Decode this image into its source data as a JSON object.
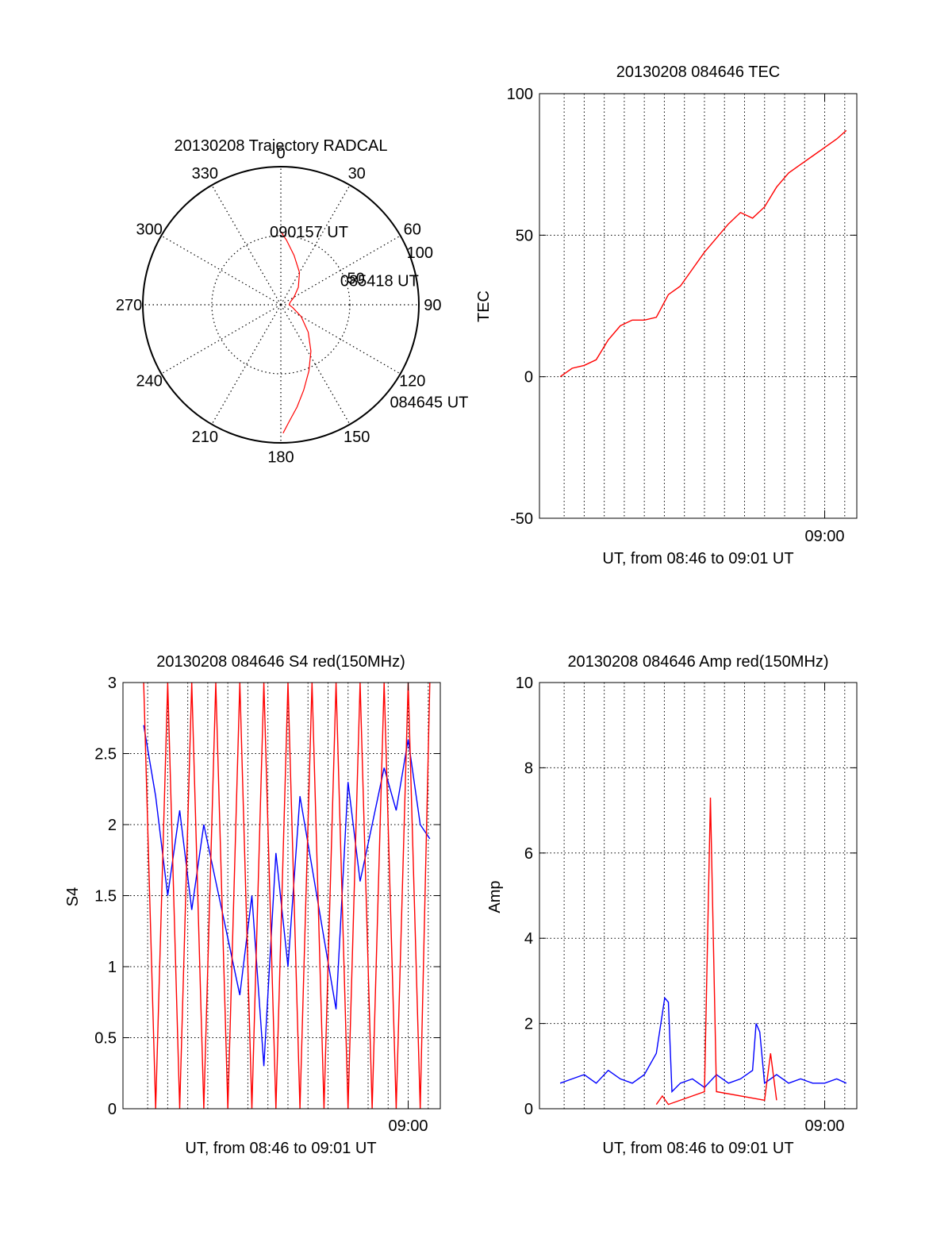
{
  "colors": {
    "red": "#ff0000",
    "blue": "#0000ff",
    "grid": "#000000",
    "axis": "#000000"
  },
  "chart_data": [
    {
      "id": "trajectory",
      "type": "polar",
      "title": "20130208 Trajectory RADCAL",
      "angle_labels": [
        "0",
        "30",
        "60",
        "90",
        "120",
        "150",
        "180",
        "210",
        "240",
        "270",
        "300",
        "330"
      ],
      "ring_labels": [
        "50",
        "100"
      ],
      "r_max": 100,
      "series": [
        {
          "color": "#ff0000",
          "points": [
            [
              179,
              93
            ],
            [
              176,
              85
            ],
            [
              171,
              75
            ],
            [
              165,
              64
            ],
            [
              157,
              52
            ],
            [
              147,
              40
            ],
            [
              135,
              28
            ],
            [
              120,
              17
            ],
            [
              104,
              9
            ],
            [
              90,
              6
            ],
            [
              75,
              7
            ],
            [
              60,
              11
            ],
            [
              45,
              18
            ],
            [
              30,
              27
            ],
            [
              15,
              37
            ],
            [
              5,
              47
            ],
            [
              0,
              53
            ]
          ]
        }
      ],
      "annotations": [
        {
          "text": "090157 UT",
          "az": 0,
          "r": 53
        },
        {
          "text": "085418 UT",
          "az": 71,
          "r": 54
        },
        {
          "text": "084645 UT",
          "az": 129,
          "r": 112
        }
      ]
    },
    {
      "id": "tec",
      "type": "line",
      "title": "20130208 084646 TEC",
      "xlabel": "UT, from 08:46 to 09:01 UT",
      "ylabel": "TEC",
      "xlim": [
        8.7628,
        9.0267
      ],
      "ylim": [
        -50,
        100
      ],
      "yticks": [
        -50,
        0,
        50,
        100
      ],
      "xtick_label": {
        "value": 9.0,
        "text": "09:00"
      },
      "grid_x_minutes": [
        47,
        48,
        49,
        50,
        51,
        52,
        53,
        54,
        55,
        56,
        57,
        58,
        59,
        60,
        61
      ],
      "series": [
        {
          "color": "#ff0000",
          "x": [
            8.78,
            8.79,
            8.8,
            8.81,
            8.82,
            8.83,
            8.84,
            8.85,
            8.86,
            8.87,
            8.88,
            8.89,
            8.9,
            8.91,
            8.92,
            8.93,
            8.94,
            8.95,
            8.96,
            8.97,
            8.98,
            8.99,
            9.0,
            9.01,
            9.018
          ],
          "y": [
            0,
            3,
            4,
            6,
            13,
            18,
            20,
            20,
            21,
            29,
            32,
            38,
            44,
            49,
            54,
            58,
            56,
            60,
            67,
            72,
            75,
            78,
            81,
            84,
            87
          ]
        }
      ]
    },
    {
      "id": "s4",
      "type": "line",
      "title": "20130208 084646 S4 red(150MHz)",
      "xlabel": "UT, from 08:46 to 09:01 UT",
      "ylabel": "S4",
      "xlim": [
        8.7628,
        9.0267
      ],
      "ylim": [
        0,
        3
      ],
      "yticks": [
        0,
        0.5,
        1,
        1.5,
        2,
        2.5,
        3
      ],
      "ytick_labels": [
        "0",
        "0.5",
        "1",
        "1.5",
        "2",
        "2.5",
        "3"
      ],
      "xtick_label": {
        "value": 9.0,
        "text": "09:00"
      },
      "grid_x_minutes": [
        47,
        48,
        49,
        50,
        51,
        52,
        53,
        54,
        55,
        56,
        57,
        58,
        59,
        60,
        61
      ],
      "series": [
        {
          "color": "#0000ff",
          "x": [
            8.78,
            8.79,
            8.8,
            8.81,
            8.82,
            8.83,
            8.84,
            8.85,
            8.86,
            8.87,
            8.88,
            8.89,
            8.9,
            8.91,
            8.92,
            8.93,
            8.94,
            8.95,
            8.96,
            8.97,
            8.98,
            8.99,
            9.0,
            9.01,
            9.018
          ],
          "y": [
            2.7,
            2.2,
            1.5,
            2.1,
            1.4,
            2.0,
            1.6,
            1.2,
            0.8,
            1.5,
            0.3,
            1.8,
            1.0,
            2.2,
            1.7,
            1.2,
            0.7,
            2.3,
            1.6,
            2.0,
            2.4,
            2.1,
            2.6,
            2.0,
            1.9
          ]
        },
        {
          "color": "#ff0000",
          "x": [
            8.78,
            8.79,
            8.8,
            8.81,
            8.82,
            8.83,
            8.84,
            8.85,
            8.86,
            8.87,
            8.88,
            8.89,
            8.9,
            8.91,
            8.92,
            8.93,
            8.94,
            8.95,
            8.96,
            8.97,
            8.98,
            8.99,
            9.0,
            9.01,
            9.018
          ],
          "y": [
            3.0,
            0,
            3.0,
            0,
            3.0,
            0,
            3.0,
            0,
            3.0,
            0,
            3.0,
            0,
            3.0,
            0,
            3.0,
            0,
            3.0,
            0,
            3.0,
            0,
            3.0,
            0,
            3.0,
            0,
            3.0
          ]
        }
      ]
    },
    {
      "id": "amp",
      "type": "line",
      "title": "20130208 084646 Amp red(150MHz)",
      "xlabel": "UT, from 08:46 to 09:01 UT",
      "ylabel": "Amp",
      "xlim": [
        8.7628,
        9.0267
      ],
      "ylim": [
        0,
        10
      ],
      "yticks": [
        0,
        2,
        4,
        6,
        8,
        10
      ],
      "xtick_label": {
        "value": 9.0,
        "text": "09:00"
      },
      "grid_x_minutes": [
        47,
        48,
        49,
        50,
        51,
        52,
        53,
        54,
        55,
        56,
        57,
        58,
        59,
        60,
        61
      ],
      "series": [
        {
          "color": "#0000ff",
          "x": [
            8.78,
            8.79,
            8.8,
            8.81,
            8.82,
            8.83,
            8.84,
            8.85,
            8.86,
            8.867,
            8.87,
            8.873,
            8.88,
            8.89,
            8.9,
            8.91,
            8.92,
            8.93,
            8.94,
            8.943,
            8.946,
            8.95,
            8.96,
            8.97,
            8.98,
            8.99,
            9.0,
            9.01,
            9.018
          ],
          "y": [
            0.6,
            0.7,
            0.8,
            0.6,
            0.9,
            0.7,
            0.6,
            0.8,
            1.3,
            2.6,
            2.5,
            0.4,
            0.6,
            0.7,
            0.5,
            0.8,
            0.6,
            0.7,
            0.9,
            2.0,
            1.8,
            0.6,
            0.8,
            0.6,
            0.7,
            0.6,
            0.6,
            0.7,
            0.6
          ]
        },
        {
          "color": "#ff0000",
          "x": [
            8.86,
            8.865,
            8.87,
            8.9,
            8.905,
            8.91,
            8.95,
            8.955,
            8.96
          ],
          "y": [
            0.1,
            0.3,
            0.1,
            0.4,
            7.3,
            0.4,
            0.2,
            1.3,
            0.2
          ]
        }
      ]
    }
  ]
}
